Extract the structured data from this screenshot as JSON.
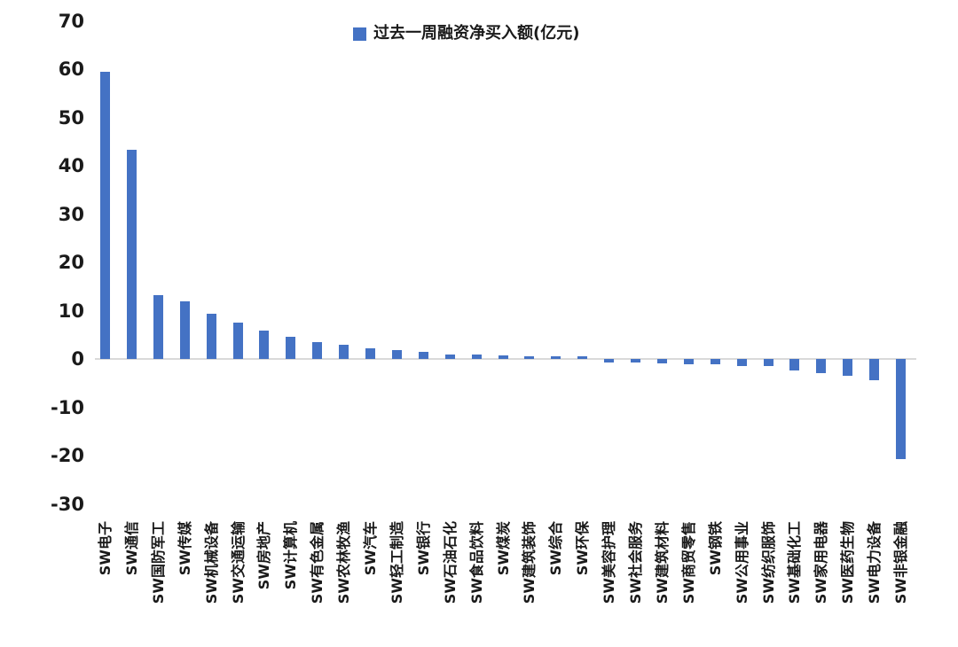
{
  "chart_data": {
    "type": "bar",
    "title": "",
    "legend": "过去一周融资净买入额(亿元)",
    "legend_position": "top-center",
    "bar_color": "#4472C4",
    "axis_line_color": "#D9D9D9",
    "text_color": "#1A1A1A",
    "grid": false,
    "xlabel": "",
    "ylabel": "",
    "ylim": [
      -30,
      70
    ],
    "ytick_step": 10,
    "yticks": [
      70,
      60,
      50,
      40,
      30,
      20,
      10,
      0,
      -10,
      -20,
      -30
    ],
    "categories": [
      "SW电子",
      "SW通信",
      "SW国防军工",
      "SW传媒",
      "SW机械设备",
      "SW交通运输",
      "SW房地产",
      "SW计算机",
      "SW有色金属",
      "SW农林牧渔",
      "SW汽车",
      "SW轻工制造",
      "SW银行",
      "SW石油石化",
      "SW食品饮料",
      "SW煤炭",
      "SW建筑装饰",
      "SW综合",
      "SW环保",
      "SW美容护理",
      "SW社会服务",
      "SW建筑材料",
      "SW商贸零售",
      "SW钢铁",
      "SW公用事业",
      "SW纺织服饰",
      "SW基础化工",
      "SW家用电器",
      "SW医药生物",
      "SW电力设备",
      "SW非银金融"
    ],
    "values": [
      59.5,
      43.3,
      13.3,
      11.9,
      9.4,
      7.6,
      5.9,
      4.6,
      3.4,
      3.0,
      2.2,
      1.9,
      1.4,
      0.9,
      0.9,
      0.8,
      0.6,
      0.6,
      0.5,
      -0.7,
      -0.8,
      -0.9,
      -1.1,
      -1.1,
      -1.4,
      -1.5,
      -2.3,
      -3.0,
      -3.5,
      -4.4,
      -20.8
    ]
  }
}
